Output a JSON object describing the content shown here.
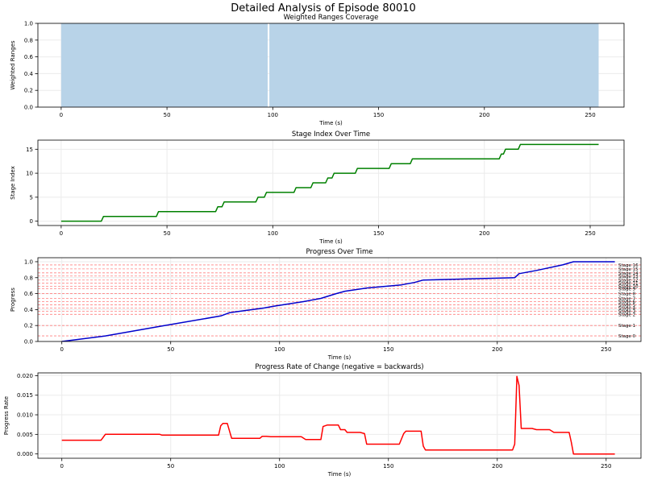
{
  "figure_title": "Detailed Analysis of Episode 80010",
  "chart_data": [
    {
      "type": "area",
      "title": "Weighted Ranges Coverage",
      "xlabel": "Time (s)",
      "ylabel": "Weighted Ranges",
      "xlim": [
        -11,
        266
      ],
      "ylim": [
        0,
        1.0
      ],
      "xticks": [
        0,
        50,
        100,
        150,
        200,
        250
      ],
      "yticks": [
        0.0,
        0.2,
        0.4,
        0.6,
        0.8,
        1.0
      ],
      "ytick_labels": [
        "0.0",
        "0.2",
        "0.4",
        "0.6",
        "0.8",
        "1.0"
      ],
      "color": "#b8d3e8",
      "series": [
        {
          "name": "coverage",
          "x": [
            0,
            97.6,
            97.6,
            98.4,
            98.4,
            254
          ],
          "y": [
            1,
            1,
            0,
            0,
            1,
            1
          ]
        }
      ]
    },
    {
      "type": "line",
      "title": "Stage Index Over Time",
      "xlabel": "Time (s)",
      "ylabel": "Stage Index",
      "xlim": [
        -11,
        266
      ],
      "ylim": [
        -0.9,
        16.9
      ],
      "xticks": [
        0,
        50,
        100,
        150,
        200,
        250
      ],
      "yticks": [
        0,
        5,
        10,
        15
      ],
      "ytick_labels": [
        "0",
        "5",
        "10",
        "15"
      ],
      "color": "#008000",
      "series": [
        {
          "name": "stage",
          "x": [
            0,
            19,
            20,
            45,
            46,
            73,
            74,
            76,
            77,
            92,
            93,
            96,
            97,
            110,
            111,
            118,
            119,
            125,
            126,
            128,
            129,
            139,
            140,
            155,
            156,
            165,
            166,
            207,
            208,
            209,
            210,
            216,
            217,
            220,
            254
          ],
          "y": [
            0,
            0,
            1,
            1,
            2,
            2,
            3,
            3,
            4,
            4,
            5,
            5,
            6,
            6,
            7,
            7,
            8,
            8,
            9,
            9,
            10,
            10,
            11,
            11,
            12,
            12,
            13,
            13,
            14,
            14,
            15,
            15,
            16,
            16,
            16
          ]
        }
      ]
    },
    {
      "type": "line",
      "title": "Progress Over Time",
      "xlabel": "Time (s)",
      "ylabel": "Progress",
      "xlim": [
        -11,
        266
      ],
      "ylim": [
        0,
        1.05
      ],
      "xticks": [
        0,
        50,
        100,
        150,
        200,
        250
      ],
      "yticks": [
        0.0,
        0.2,
        0.4,
        0.6,
        0.8,
        1.0
      ],
      "ytick_labels": [
        "0.0",
        "0.2",
        "0.4",
        "0.6",
        "0.8",
        "1.0"
      ],
      "color": "#0000cc",
      "series": [
        {
          "name": "progress",
          "x": [
            0,
            20,
            45,
            73,
            77,
            93,
            97,
            111,
            119,
            126,
            130,
            140,
            156,
            162,
            166,
            208,
            210,
            218,
            230,
            235,
            254
          ],
          "y": [
            0.0,
            0.07,
            0.19,
            0.32,
            0.36,
            0.42,
            0.44,
            0.5,
            0.54,
            0.6,
            0.63,
            0.67,
            0.71,
            0.74,
            0.77,
            0.8,
            0.85,
            0.89,
            0.96,
            1.0,
            1.0
          ]
        }
      ],
      "stage_lines": {
        "color": "#ff8080",
        "labels": [
          "Stage 0",
          "Stage 1",
          "Stage 2",
          "Stage 3",
          "Stage 4",
          "Stage 5",
          "Stage 6",
          "Stage 7",
          "Stage 8",
          "Stage 9",
          "Stage 10",
          "Stage 11",
          "Stage 12",
          "Stage 13",
          "Stage 14",
          "Stage 15",
          "Stage 16"
        ],
        "values": [
          0.07,
          0.2,
          0.34,
          0.38,
          0.42,
          0.46,
          0.5,
          0.54,
          0.6,
          0.66,
          0.69,
          0.73,
          0.77,
          0.82,
          0.86,
          0.91,
          0.96
        ]
      }
    },
    {
      "type": "line",
      "title": "Progress Rate of Change (negative = backwards)",
      "xlabel": "Time (s)",
      "ylabel": "Progress Rate",
      "xlim": [
        -11,
        266
      ],
      "ylim": [
        -0.0011,
        0.0207
      ],
      "xticks": [
        0,
        50,
        100,
        150,
        200,
        250
      ],
      "yticks": [
        0.0,
        0.005,
        0.01,
        0.015,
        0.02
      ],
      "ytick_labels": [
        "0.000",
        "0.005",
        "0.010",
        "0.015",
        "0.020"
      ],
      "color": "#ff0000",
      "series": [
        {
          "name": "rate",
          "x": [
            0,
            18,
            20,
            45,
            46,
            72,
            73,
            74,
            76,
            78,
            91,
            92,
            94,
            96,
            110,
            112,
            119,
            120,
            122,
            127,
            128,
            130,
            131,
            137,
            139,
            140,
            155,
            157,
            158,
            165,
            166,
            167,
            207,
            208,
            209,
            210,
            211,
            216,
            218,
            224,
            226,
            233,
            234,
            235,
            254
          ],
          "y": [
            0.0035,
            0.0035,
            0.005,
            0.005,
            0.0048,
            0.0048,
            0.0072,
            0.0078,
            0.0078,
            0.004,
            0.004,
            0.0045,
            0.0045,
            0.0044,
            0.0044,
            0.0037,
            0.0037,
            0.007,
            0.0074,
            0.0074,
            0.0062,
            0.0062,
            0.0055,
            0.0055,
            0.0052,
            0.0025,
            0.0025,
            0.0052,
            0.0058,
            0.0058,
            0.002,
            0.001,
            0.001,
            0.0025,
            0.0198,
            0.0175,
            0.0065,
            0.0065,
            0.0062,
            0.0062,
            0.0055,
            0.0055,
            0.003,
            0.0,
            0.0
          ]
        }
      ]
    }
  ]
}
